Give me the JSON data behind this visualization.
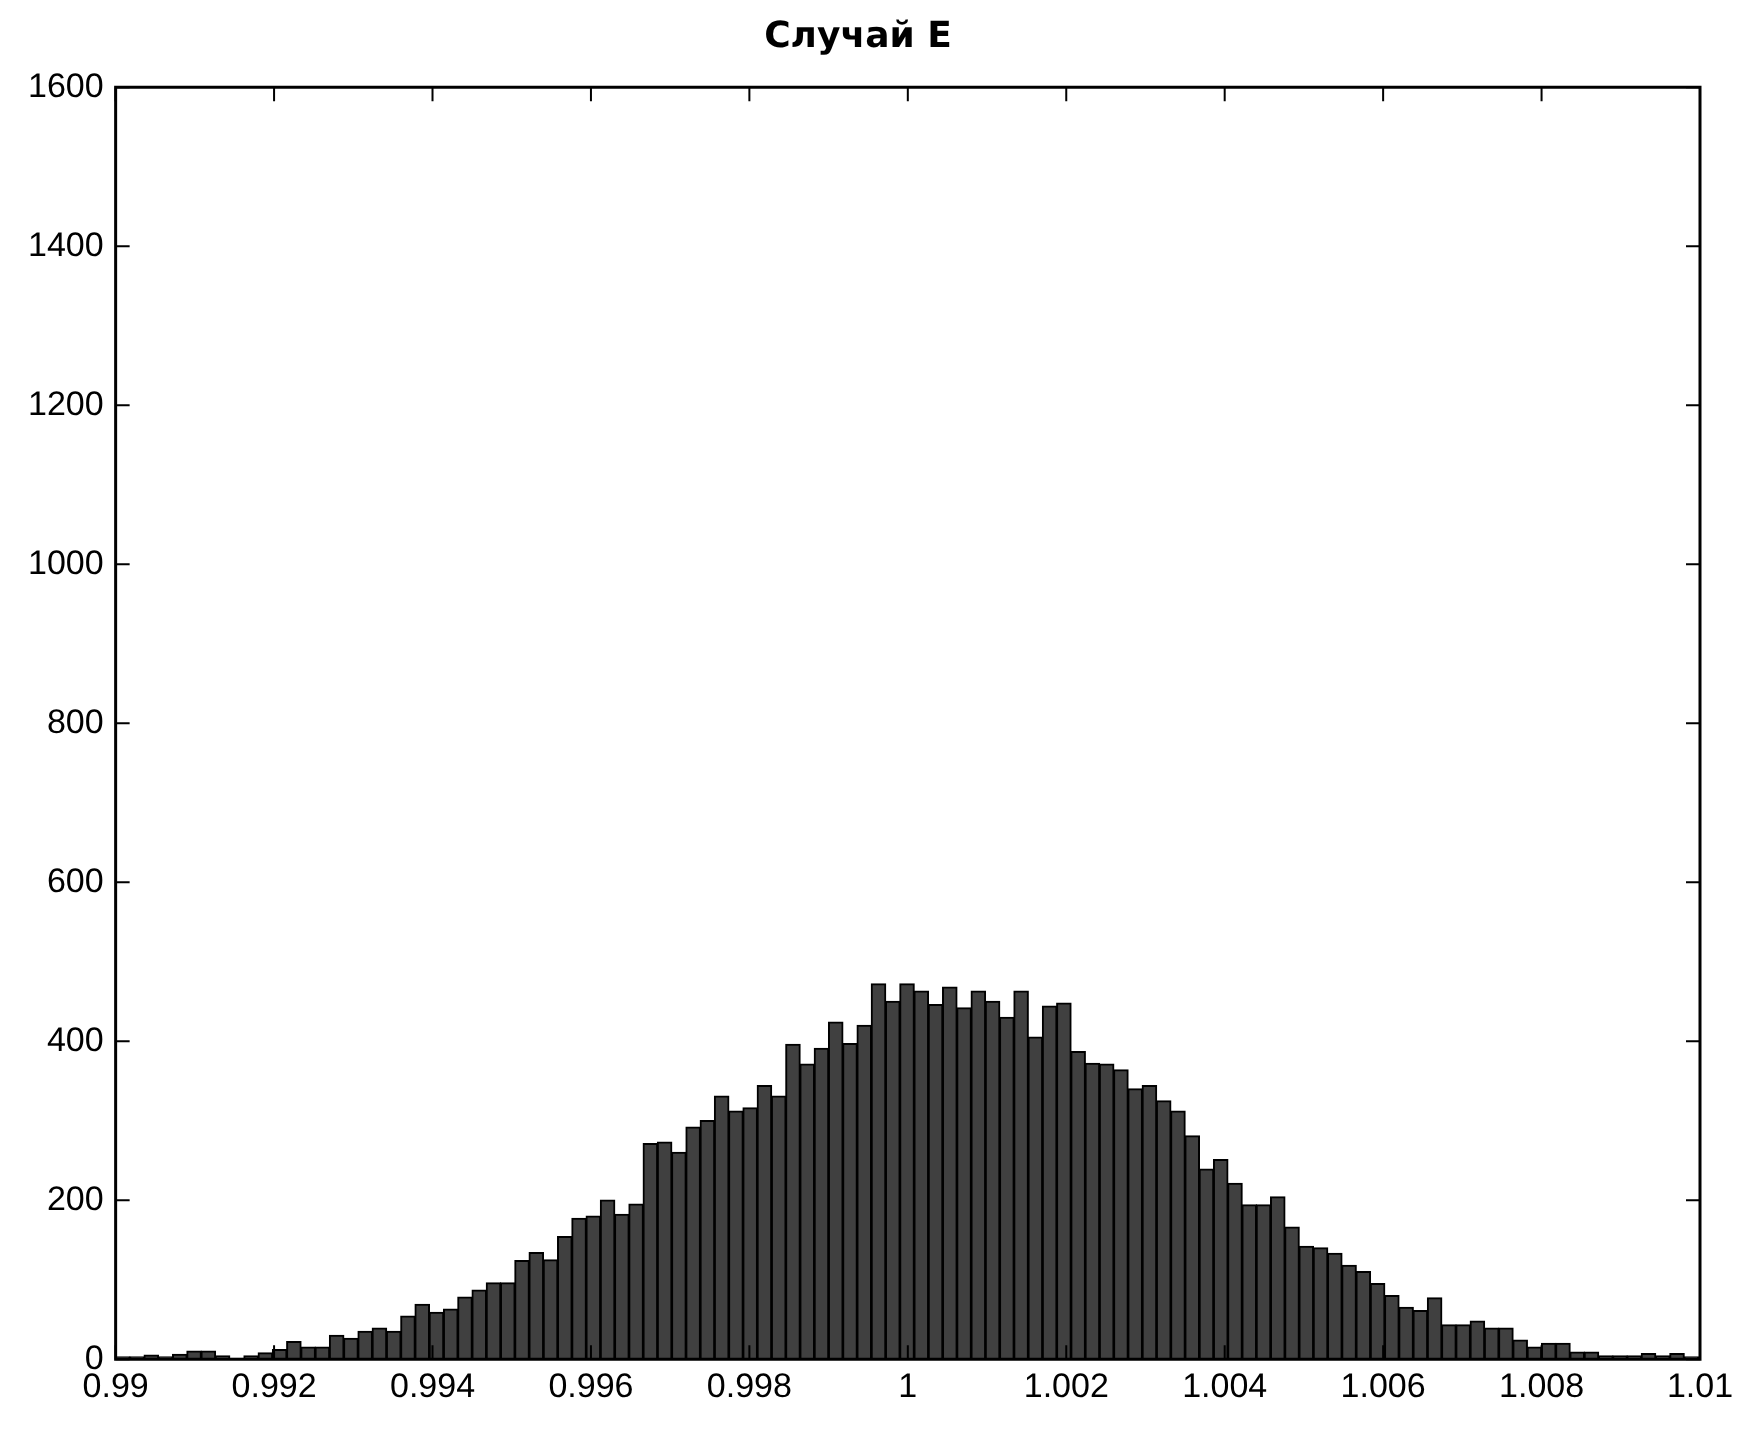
{
  "chart_data": {
    "type": "histogram",
    "title": "Случай E",
    "bins": [
      0.99,
      0.99018,
      0.99036,
      0.99054,
      0.99072,
      0.9909,
      0.99108,
      0.99126,
      0.99144,
      0.99162,
      0.9918,
      0.99198,
      0.99216,
      0.99234,
      0.99252,
      0.9927,
      0.99288,
      0.99306,
      0.99324,
      0.99342,
      0.9936,
      0.99378,
      0.99396,
      0.99414,
      0.99432,
      0.9945,
      0.99468,
      0.99486,
      0.99504,
      0.99522,
      0.9954,
      0.99558,
      0.99576,
      0.99594,
      0.99612,
      0.9963,
      0.99648,
      0.99666,
      0.99684,
      0.99702,
      0.9972,
      0.99738,
      0.99756,
      0.99774,
      0.99792,
      0.9981,
      0.99828,
      0.99846,
      0.99864,
      0.99882,
      0.999,
      0.99918,
      0.99936,
      0.99954,
      0.99972,
      0.9999,
      1.00008,
      1.00026,
      1.00044,
      1.00062,
      1.0008,
      1.00098,
      1.00116,
      1.00134,
      1.00152,
      1.0017,
      1.00188,
      1.00206,
      1.00224,
      1.00242,
      1.0026,
      1.00278,
      1.00296,
      1.00314,
      1.00332,
      1.0035,
      1.00368,
      1.00386,
      1.00404,
      1.00422,
      1.0044,
      1.00458,
      1.00476,
      1.00494,
      1.00512,
      1.0053,
      1.00548,
      1.00566,
      1.00584,
      1.00602,
      1.0062,
      1.00638,
      1.00656,
      1.00674,
      1.00692,
      1.0071,
      1.00728,
      1.00746,
      1.00764,
      1.00782,
      1.008,
      1.00818,
      1.00836,
      1.00854,
      1.00872,
      1.0089,
      1.00908,
      1.00926,
      1.00944,
      1.00962,
      1.0098,
      1.00998
    ],
    "values": [
      3,
      3,
      5,
      3,
      6,
      10,
      10,
      4,
      1,
      4,
      8,
      12,
      22,
      15,
      15,
      30,
      26,
      35,
      39,
      35,
      54,
      69,
      59,
      63,
      78,
      87,
      96,
      96,
      124,
      134,
      125,
      154,
      177,
      180,
      200,
      182,
      195,
      271,
      273,
      260,
      292,
      300,
      331,
      312,
      316,
      344,
      331,
      396,
      371,
      391,
      424,
      397,
      420,
      472,
      450,
      472,
      463,
      446,
      468,
      442,
      463,
      450,
      430,
      463,
      405,
      444,
      448,
      387,
      372,
      371,
      364,
      340,
      344,
      325,
      312,
      281,
      239,
      251,
      221,
      194,
      194,
      204,
      166,
      142,
      140,
      133,
      118,
      110,
      95,
      80,
      65,
      61,
      77,
      43,
      43,
      48,
      39,
      39,
      24,
      15,
      20,
      20,
      9,
      9,
      4,
      4,
      4,
      7,
      4,
      7,
      3
    ],
    "color": "#404040",
    "xlim": [
      0.99,
      1.01
    ],
    "xticks": [
      0.99,
      0.992,
      0.994,
      0.996,
      0.998,
      1,
      1.002,
      1.004,
      1.006,
      1.008,
      1.01
    ],
    "ylim": [
      0,
      1600
    ],
    "yticks": [
      0,
      200,
      400,
      600,
      800,
      1000,
      1200,
      1400,
      1600
    ],
    "grid": false,
    "legend": false
  }
}
